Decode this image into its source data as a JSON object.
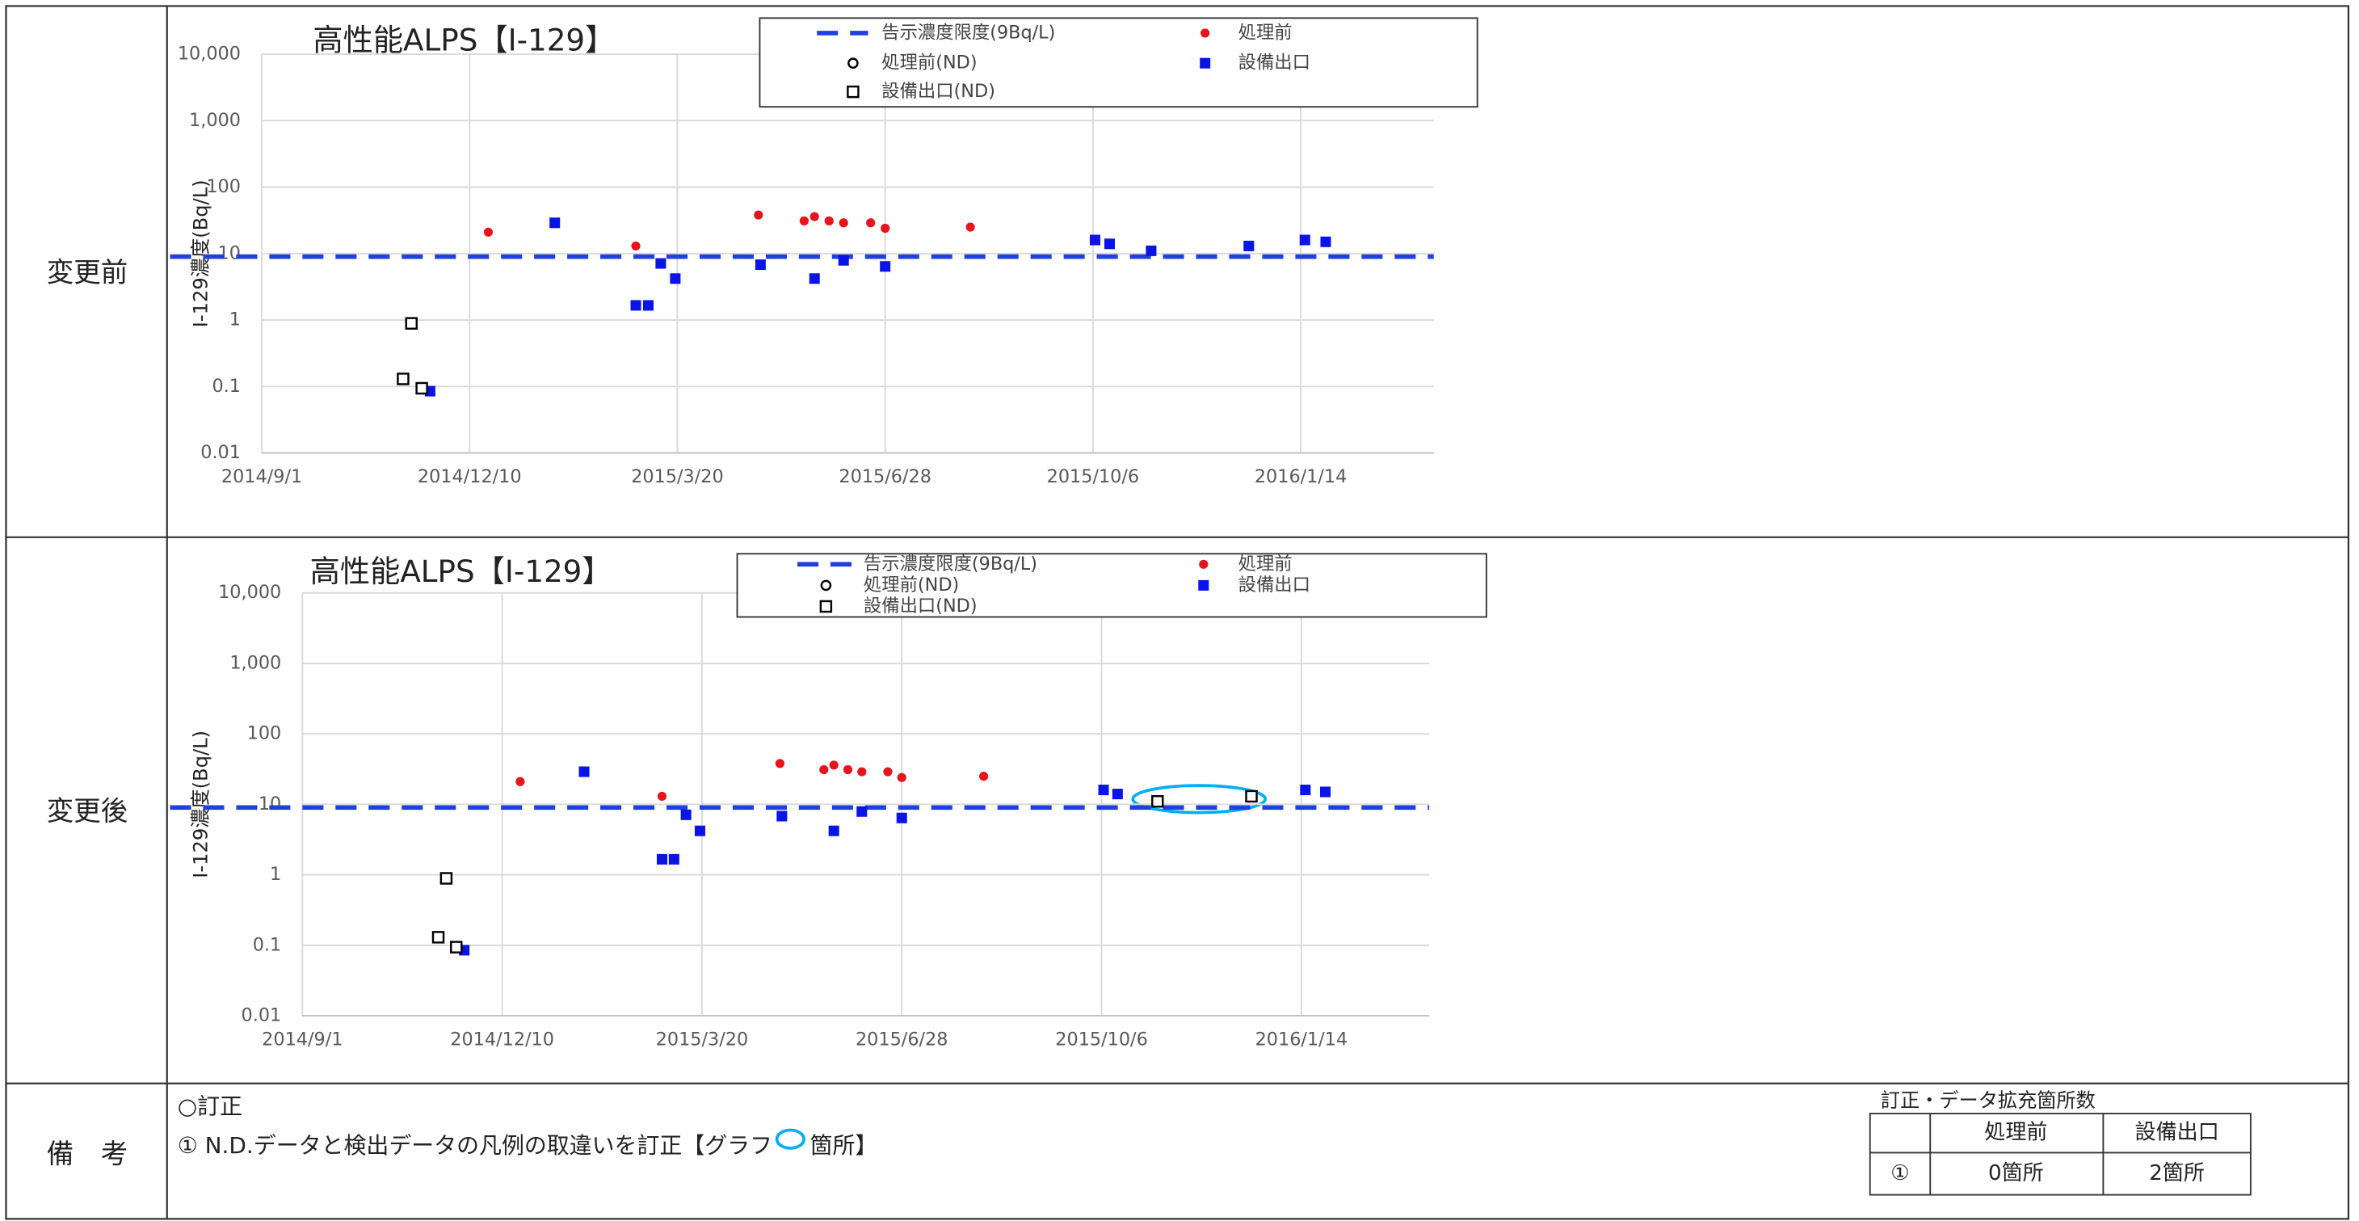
{
  "rows": [
    {
      "label": "変更前"
    },
    {
      "label": "変更後"
    },
    {
      "label": "備　考"
    }
  ],
  "chart_data": [
    {
      "type": "scatter",
      "title": "高性能ALPS【I-129】",
      "y_label": "I-129濃度(Bq/L)",
      "log_y": true,
      "grid": true,
      "ylim": [
        0.01,
        10000
      ],
      "yticks": [
        {
          "value": 10000,
          "label": "10,000"
        },
        {
          "value": 1000,
          "label": "1,000"
        },
        100,
        10,
        1,
        0.1,
        0.01
      ],
      "xlim": [
        "2014/9/1",
        "2016/3/18"
      ],
      "xticks": [
        "2014/9/1",
        "2014/12/10",
        "2015/3/20",
        "2015/6/28",
        "2015/10/6",
        "2016/1/14"
      ],
      "reference_line": {
        "name": "告示濃度限度(9Bq/L)",
        "value": 9,
        "color": "#1f3fe0"
      },
      "series": [
        {
          "name": "処理前",
          "color": "#e8141c",
          "marker": "circle",
          "x": [
            "2014/12/19",
            "2015/2/28",
            "2015/4/28",
            "2015/5/20",
            "2015/5/25",
            "2015/6/1",
            "2015/6/8",
            "2015/6/21",
            "2015/6/28",
            "2015/8/8"
          ],
          "values": [
            21,
            13,
            38,
            31,
            36,
            31,
            29,
            29,
            24,
            25
          ]
        },
        {
          "name": "処理前(ND)",
          "color": "#000000",
          "marker": "open-circle",
          "x": [],
          "values": []
        },
        {
          "name": "設備出口",
          "color": "#0a14e6",
          "marker": "square",
          "x": [
            "2014/11/21",
            "2015/1/20",
            "2015/2/28",
            "2015/3/6",
            "2015/3/12",
            "2015/3/19",
            "2015/4/29",
            "2015/5/25",
            "2015/6/8",
            "2015/6/28",
            "2015/10/7",
            "2015/10/14",
            "2015/11/3",
            "2015/12/20",
            "2016/1/16",
            "2016/1/26"
          ],
          "values": [
            0.085,
            29,
            1.66,
            1.66,
            7.1,
            4.2,
            6.8,
            4.2,
            7.9,
            6.4,
            16,
            14,
            11,
            13,
            16,
            15
          ]
        },
        {
          "name": "設備出口(ND)",
          "color": "#000000",
          "marker": "open-square",
          "x": [
            "2014/11/8",
            "2014/11/12",
            "2014/11/17"
          ],
          "values": [
            0.13,
            0.89,
            0.094
          ]
        }
      ]
    },
    {
      "type": "scatter",
      "title": "高性能ALPS【I-129】",
      "y_label": "I-129濃度(Bq/L)",
      "log_y": true,
      "grid": true,
      "ylim": [
        0.01,
        10000
      ],
      "yticks": [
        {
          "value": 10000,
          "label": "10,000"
        },
        {
          "value": 1000,
          "label": "1,000"
        },
        100,
        10,
        1,
        0.1,
        0.01
      ],
      "xlim": [
        "2014/9/1",
        "2016/3/18"
      ],
      "xticks": [
        "2014/9/1",
        "2014/12/10",
        "2015/3/20",
        "2015/6/28",
        "2015/10/6",
        "2016/1/14"
      ],
      "reference_line": {
        "name": "告示濃度限度(9Bq/L)",
        "value": 9,
        "color": "#1f3fe0"
      },
      "series": [
        {
          "name": "処理前",
          "color": "#e8141c",
          "marker": "circle",
          "x": [
            "2014/12/19",
            "2015/2/28",
            "2015/4/28",
            "2015/5/20",
            "2015/5/25",
            "2015/6/1",
            "2015/6/8",
            "2015/6/21",
            "2015/6/28",
            "2015/8/8"
          ],
          "values": [
            21,
            13,
            38,
            31,
            36,
            31,
            29,
            29,
            24,
            25
          ]
        },
        {
          "name": "処理前(ND)",
          "color": "#000000",
          "marker": "open-circle",
          "x": [],
          "values": []
        },
        {
          "name": "設備出口",
          "color": "#0a14e6",
          "marker": "square",
          "x": [
            "2014/11/21",
            "2015/1/20",
            "2015/2/28",
            "2015/3/6",
            "2015/3/12",
            "2015/3/19",
            "2015/4/29",
            "2015/5/25",
            "2015/6/8",
            "2015/6/28",
            "2015/10/7",
            "2015/10/14",
            "2016/1/16",
            "2016/1/26"
          ],
          "values": [
            0.085,
            29,
            1.66,
            1.66,
            7.1,
            4.2,
            6.8,
            4.2,
            7.9,
            6.4,
            16,
            14,
            16,
            15
          ]
        },
        {
          "name": "設備出口(ND)",
          "color": "#000000",
          "marker": "open-square",
          "x": [
            "2014/11/8",
            "2014/11/12",
            "2014/11/17",
            "2015/11/3",
            "2015/12/20"
          ],
          "values": [
            0.13,
            0.89,
            0.094,
            11,
            13
          ]
        }
      ]
    }
  ],
  "remarks": {
    "heading": "○訂正",
    "note_before": "① N.D.データと検出データの凡例の取違いを訂正【グラフ",
    "note_after": "箇所】"
  },
  "count_table": {
    "caption": "訂正・データ拡充箇所数",
    "header": [
      "処理前",
      "設備出口"
    ],
    "rows": [
      [
        "①",
        "0箇所",
        "2箇所"
      ]
    ]
  }
}
